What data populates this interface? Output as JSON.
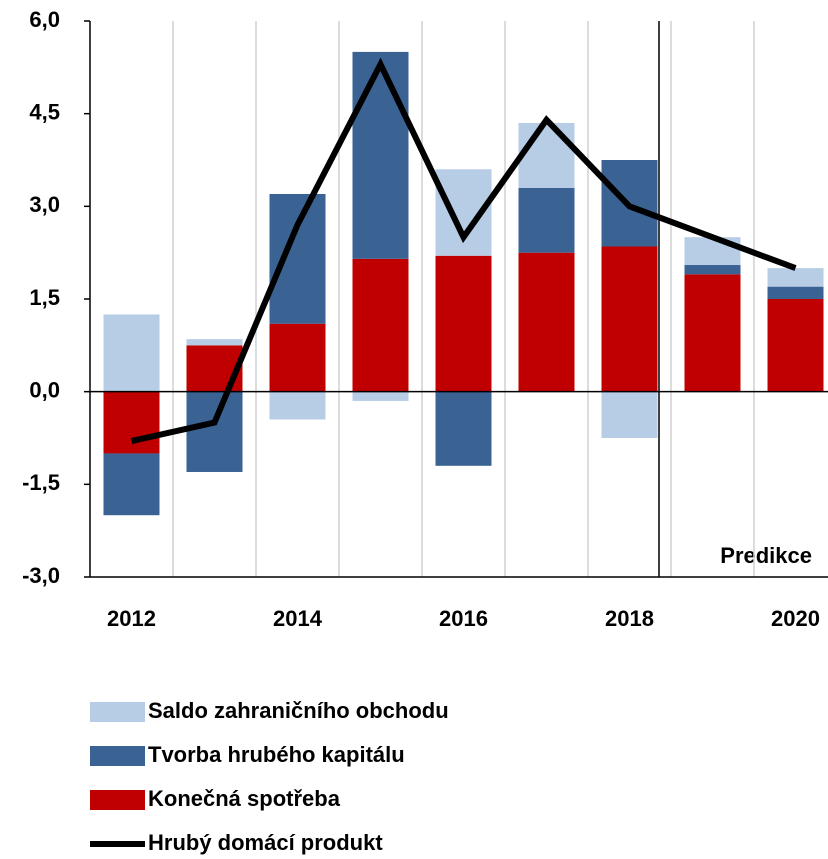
{
  "chart_data": {
    "type": "stacked_bar_line",
    "categories": [
      "2012",
      null,
      "2014",
      null,
      "2016",
      null,
      "2018",
      null,
      "2020"
    ],
    "series": [
      {
        "name": "Saldo zahraničního obchodu",
        "color": "#b7cce5",
        "values": [
          1.25,
          0.1,
          -0.45,
          -0.15,
          1.4,
          1.05,
          -0.75,
          0.45,
          0.3
        ]
      },
      {
        "name": "Tvorba hrubého kapitálu",
        "color": "#3a6293",
        "values": [
          -1.0,
          -1.3,
          2.1,
          3.35,
          -1.2,
          1.05,
          1.4,
          0.15,
          0.2
        ]
      },
      {
        "name": "Konečná spotřeba",
        "color": "#c00000",
        "values": [
          -1.0,
          0.75,
          1.1,
          2.15,
          2.2,
          2.25,
          2.35,
          1.9,
          1.5
        ]
      },
      {
        "name": "Hrubý domácí produkt",
        "type": "line",
        "color": "#000000",
        "values": [
          -0.8,
          -0.5,
          2.7,
          5.3,
          2.5,
          4.4,
          3.0,
          2.5,
          2.0
        ]
      }
    ],
    "ylim": [
      -3,
      6
    ],
    "yticks": [
      {
        "value": -3,
        "label": "-3,0"
      },
      {
        "value": -1.5,
        "label": "-1,5"
      },
      {
        "value": 0,
        "label": "0,0"
      },
      {
        "value": 1.5,
        "label": "1,5"
      },
      {
        "value": 3,
        "label": "3,0"
      },
      {
        "value": 4.5,
        "label": "4,5"
      },
      {
        "value": 6,
        "label": "6,0"
      }
    ],
    "annotation": "Predikce",
    "grid": true
  }
}
